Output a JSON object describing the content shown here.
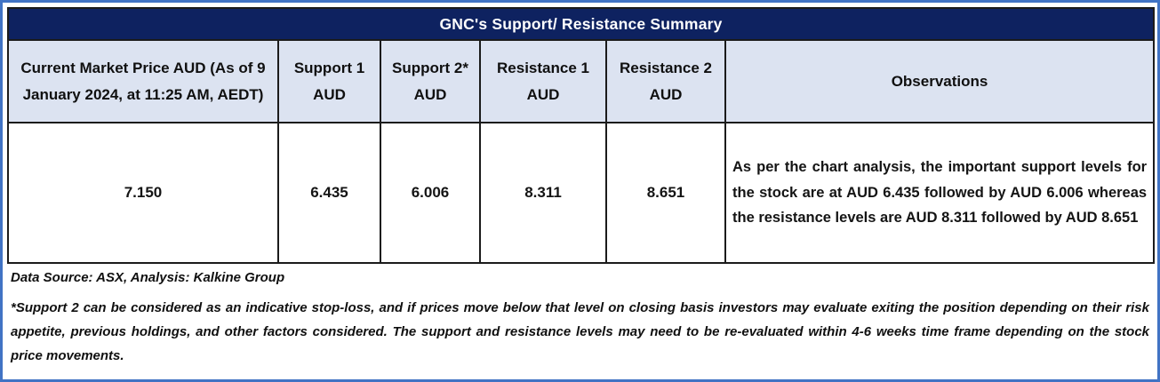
{
  "title": "GNC's Support/ Resistance Summary",
  "table": {
    "headers": [
      "Current Market Price AUD (As of 9 January 2024, at 11:25 AM, AEDT)",
      "Support 1 AUD",
      "Support 2* AUD",
      "Resistance 1 AUD",
      "Resistance 2 AUD",
      "Observations"
    ],
    "row": {
      "current_market_price": "7.150",
      "support_1": "6.435",
      "support_2": "6.006",
      "resistance_1": "8.311",
      "resistance_2": "8.651",
      "observations": "As per the chart analysis, the important support levels for the stock are at AUD 6.435 followed by AUD 6.006 whereas the resistance levels are AUD 8.311 followed by AUD 8.651"
    }
  },
  "footer": {
    "data_source": "Data Source: ASX, Analysis: Kalkine Group",
    "footnote": "*Support 2 can be considered as an indicative stop-loss, and if prices move below that level on closing basis investors may evaluate exiting the position depending on their risk appetite, previous holdings, and other factors considered. The support and resistance levels may need to be re-evaluated within 4-6 weeks time frame depending on the stock price movements."
  },
  "colors": {
    "title_bg": "#0e2260",
    "title_text": "#ffffff",
    "header_bg": "#dce3f1",
    "outer_border": "#4173c4",
    "grid_border": "#1b1b1b"
  }
}
